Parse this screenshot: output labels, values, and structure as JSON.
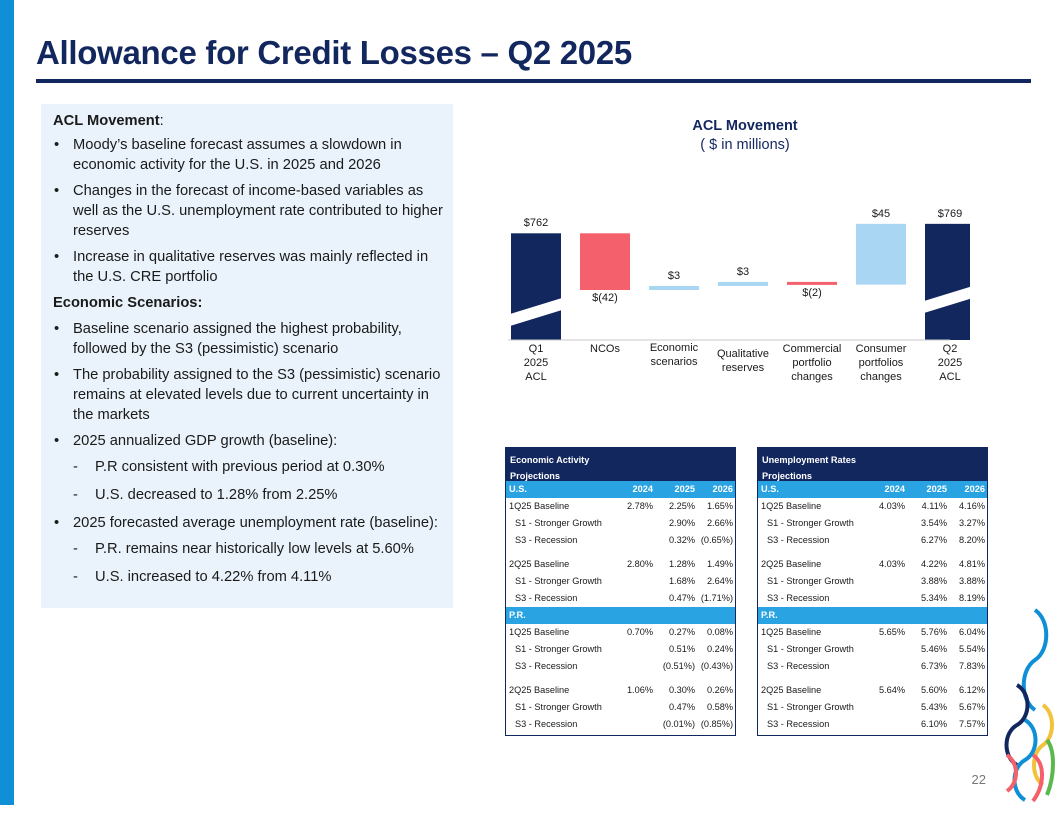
{
  "page": {
    "title": "Allowance for Credit Losses – Q2 2025",
    "page_number": "22"
  },
  "text_panel": {
    "acl_heading": "ACL Movement",
    "acl_heading_suffix": ":",
    "acl_bullets": [
      "Moody’s baseline forecast assumes a slowdown in economic activity for the U.S. in 2025 and 2026",
      "Changes in the forecast of income-based variables as well as the U.S. unemployment rate contributed to higher reserves",
      "Increase in qualitative reserves was mainly reflected in the U.S. CRE portfolio"
    ],
    "scenarios_heading": "Economic Scenarios:",
    "scenario_bullets": [
      "Baseline scenario assigned the highest probability, followed by the S3 (pessimistic) scenario",
      "The probability assigned to the S3 (pessimistic) scenario remains at elevated levels due to current uncertainty in the markets",
      "2025 annualized GDP growth (baseline):"
    ],
    "gdp_dashes": [
      "P.R consistent with previous period at 0.30%",
      "U.S. decreased to 1.28% from 2.25%"
    ],
    "unemployment_bullet": "2025 forecasted average unemployment rate (baseline):",
    "unemployment_dashes": [
      "P.R. remains near historically low levels at 5.60%",
      "U.S. increased to 4.22% from 4.11%"
    ]
  },
  "chart_data": {
    "type": "waterfall",
    "title": "ACL Movement",
    "subtitle": "( $ in millions)",
    "categories": [
      "Q1 2025 ACL",
      "NCOs",
      "Economic scenarios",
      "Qualitative reserves",
      "Commercial portfolio changes",
      "Consumer portfolios changes",
      "Q2 2025 ACL"
    ],
    "category_lines": [
      [
        "Q1",
        "2025",
        "ACL"
      ],
      [
        "NCOs"
      ],
      [
        "Economic",
        "scenarios"
      ],
      [
        "Qualitative",
        "reserves"
      ],
      [
        "Commercial",
        "portfolio",
        "changes"
      ],
      [
        "Consumer",
        "portfolios",
        "changes"
      ],
      [
        "Q2",
        "2025",
        "ACL"
      ]
    ],
    "values": [
      762,
      -42,
      3,
      3,
      -2,
      45,
      769
    ],
    "kinds": [
      "total",
      "delta",
      "delta",
      "delta",
      "delta",
      "delta",
      "total"
    ],
    "labels": [
      "$762",
      "$(42)",
      "$3",
      "$3",
      "$(2)",
      "$45",
      "$769"
    ],
    "axis_break": true,
    "colors": {
      "total": "#13275f",
      "decrease": "#f4606c",
      "increase": "#a9d6f3"
    }
  },
  "tables": [
    {
      "title_line1": "Economic Activity",
      "title_line2": "Projections",
      "sections": [
        {
          "region": "U.S.",
          "years": [
            "2024",
            "2025",
            "2026"
          ],
          "groups": [
            [
              {
                "label": "1Q25 Baseline",
                "v": [
                  "2.78%",
                  "2.25%",
                  "1.65%"
                ]
              },
              {
                "label": "S1 - Stronger Growth",
                "v": [
                  "",
                  "2.90%",
                  "2.66%"
                ]
              },
              {
                "label": "S3 - Recession",
                "v": [
                  "",
                  "0.32%",
                  "(0.65%)"
                ]
              }
            ],
            [
              {
                "label": "2Q25 Baseline",
                "v": [
                  "2.80%",
                  "1.28%",
                  "1.49%"
                ]
              },
              {
                "label": "S1 - Stronger Growth",
                "v": [
                  "",
                  "1.68%",
                  "2.64%"
                ]
              },
              {
                "label": "S3 - Recession",
                "v": [
                  "",
                  "0.47%",
                  "(1.71%)"
                ]
              }
            ]
          ]
        },
        {
          "region": "P.R.",
          "years": [
            "",
            "",
            ""
          ],
          "groups": [
            [
              {
                "label": "1Q25 Baseline",
                "v": [
                  "0.70%",
                  "0.27%",
                  "0.08%"
                ]
              },
              {
                "label": "S1 - Stronger Growth",
                "v": [
                  "",
                  "0.51%",
                  "0.24%"
                ]
              },
              {
                "label": "S3 - Recession",
                "v": [
                  "",
                  "(0.51%)",
                  "(0.43%)"
                ]
              }
            ],
            [
              {
                "label": "2Q25 Baseline",
                "v": [
                  "1.06%",
                  "0.30%",
                  "0.26%"
                ]
              },
              {
                "label": "S1 - Stronger Growth",
                "v": [
                  "",
                  "0.47%",
                  "0.58%"
                ]
              },
              {
                "label": "S3 - Recession",
                "v": [
                  "",
                  "(0.01%)",
                  "(0.85%)"
                ]
              }
            ]
          ]
        }
      ]
    },
    {
      "title_line1": "Unemployment Rates",
      "title_line2": "Projections",
      "sections": [
        {
          "region": "U.S.",
          "years": [
            "2024",
            "2025",
            "2026"
          ],
          "groups": [
            [
              {
                "label": "1Q25 Baseline",
                "v": [
                  "4.03%",
                  "4.11%",
                  "4.16%"
                ]
              },
              {
                "label": "S1 - Stronger Growth",
                "v": [
                  "",
                  "3.54%",
                  "3.27%"
                ]
              },
              {
                "label": "S3 - Recession",
                "v": [
                  "",
                  "6.27%",
                  "8.20%"
                ]
              }
            ],
            [
              {
                "label": "2Q25 Baseline",
                "v": [
                  "4.03%",
                  "4.22%",
                  "4.81%"
                ]
              },
              {
                "label": "S1 - Stronger Growth",
                "v": [
                  "",
                  "3.88%",
                  "3.88%"
                ]
              },
              {
                "label": "S3 - Recession",
                "v": [
                  "",
                  "5.34%",
                  "8.19%"
                ]
              }
            ]
          ]
        },
        {
          "region": "P.R.",
          "years": [
            "",
            "",
            ""
          ],
          "groups": [
            [
              {
                "label": "1Q25 Baseline",
                "v": [
                  "5.65%",
                  "5.76%",
                  "6.04%"
                ]
              },
              {
                "label": "S1 - Stronger Growth",
                "v": [
                  "",
                  "5.46%",
                  "5.54%"
                ]
              },
              {
                "label": "S3 - Recession",
                "v": [
                  "",
                  "6.73%",
                  "7.83%"
                ]
              }
            ],
            [
              {
                "label": "2Q25 Baseline",
                "v": [
                  "5.64%",
                  "5.60%",
                  "6.12%"
                ]
              },
              {
                "label": "S1 - Stronger Growth",
                "v": [
                  "",
                  "5.43%",
                  "5.67%"
                ]
              },
              {
                "label": "S3 - Recession",
                "v": [
                  "",
                  "6.10%",
                  "7.57%"
                ]
              }
            ]
          ]
        }
      ]
    }
  ],
  "logo": {
    "colors": [
      "#0f8fd6",
      "#13275f",
      "#f4606c",
      "#f3c23c",
      "#5bb84f"
    ]
  }
}
